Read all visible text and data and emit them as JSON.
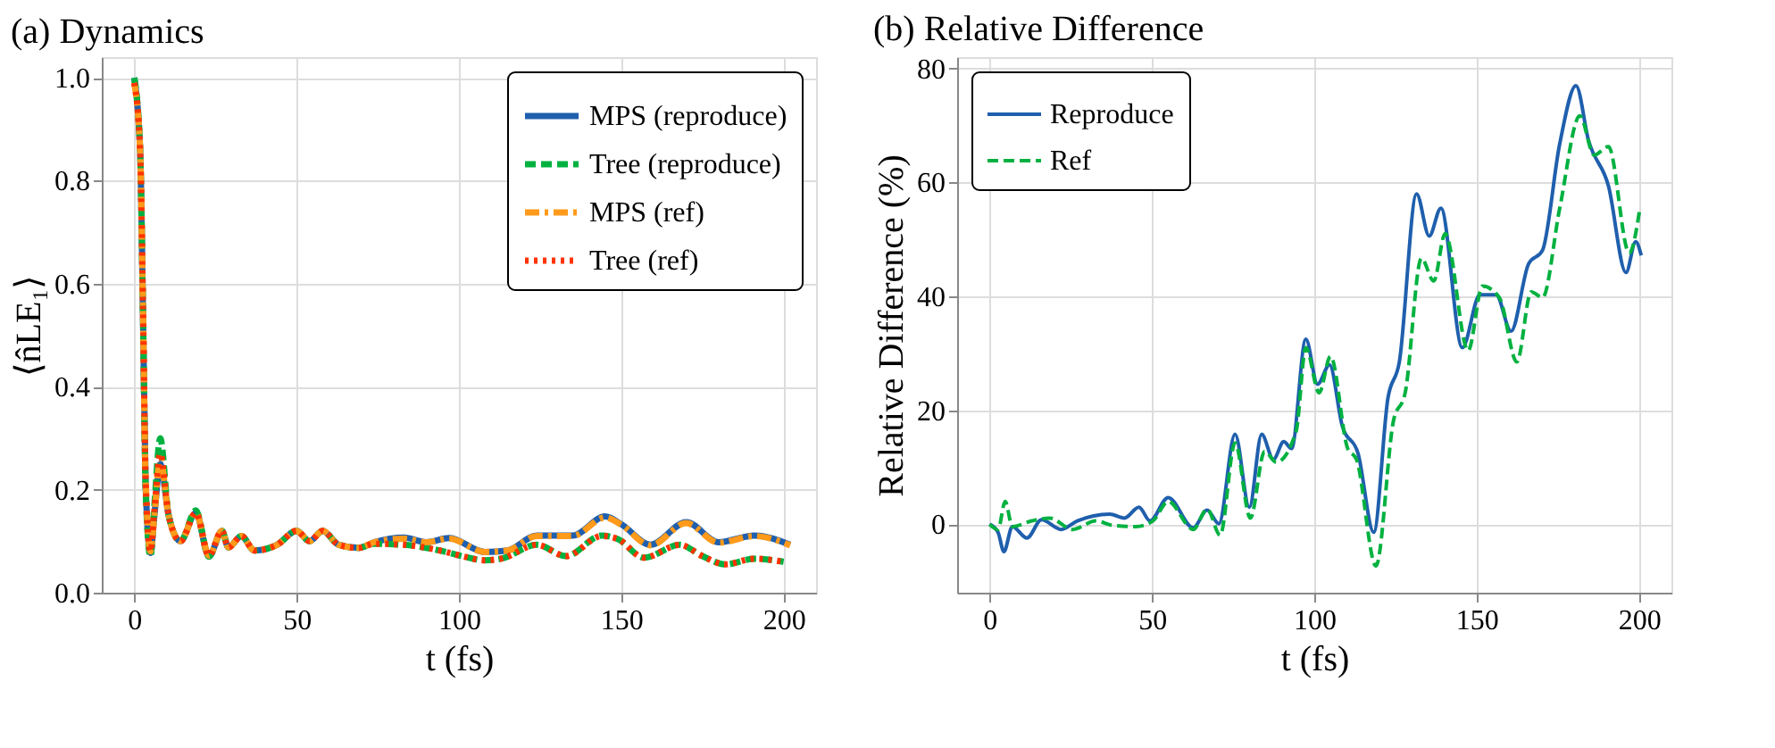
{
  "chart_data": [
    {
      "type": "line",
      "title": "(a) Dynamics",
      "xlabel": "t (fs)",
      "ylabel": "⟨n̂LE₁⟩",
      "xlim": [
        -10,
        210
      ],
      "ylim": [
        0,
        1.04
      ],
      "xticks": [
        0,
        50,
        100,
        150,
        200
      ],
      "yticks": [
        {
          "value": 0,
          "label": "0.0"
        },
        {
          "value": 0.2,
          "label": "0.2"
        },
        {
          "value": 0.4,
          "label": "0.4"
        },
        {
          "value": 0.6,
          "label": "0.6"
        },
        {
          "value": 0.8,
          "label": "0.8"
        },
        {
          "value": 1,
          "label": "1.0"
        }
      ],
      "grid": true,
      "legend": "top right",
      "marker": "none",
      "series": [
        {
          "name": "MPS (reproduce)",
          "color": "#1f5fad",
          "line_style": "solid",
          "x": [
            0,
            1.8,
            2.7,
            3.5,
            5,
            6.2,
            8,
            10.6,
            14.2,
            19,
            23,
            27,
            29,
            33,
            37,
            44,
            50,
            54,
            58,
            63,
            69,
            74,
            83,
            90,
            97,
            108,
            115,
            124,
            135,
            145,
            150,
            159,
            170,
            180,
            191,
            202
          ],
          "values": [
            1.0,
            0.86,
            0.54,
            0.21,
            0.077,
            0.15,
            0.25,
            0.15,
            0.1,
            0.155,
            0.07,
            0.12,
            0.088,
            0.11,
            0.082,
            0.093,
            0.12,
            0.1,
            0.12,
            0.093,
            0.087,
            0.098,
            0.107,
            0.098,
            0.106,
            0.079,
            0.082,
            0.111,
            0.111,
            0.148,
            0.133,
            0.093,
            0.137,
            0.098,
            0.111,
            0.093
          ]
        },
        {
          "name": "Tree (reproduce)",
          "color": "#00b140",
          "line_style": "dashed",
          "x": [
            0,
            1.8,
            2.7,
            3.5,
            5,
            6.2,
            8,
            10.6,
            14.2,
            19,
            23,
            27,
            29,
            33,
            37,
            44,
            50,
            54,
            58,
            63,
            69,
            74,
            83,
            94,
            101,
            108,
            113,
            124,
            133,
            144,
            149,
            157,
            168,
            175,
            182,
            191,
            200
          ],
          "values": [
            1.0,
            0.86,
            0.54,
            0.2,
            0.07,
            0.17,
            0.3,
            0.15,
            0.1,
            0.16,
            0.07,
            0.12,
            0.088,
            0.11,
            0.082,
            0.093,
            0.12,
            0.1,
            0.12,
            0.093,
            0.087,
            0.095,
            0.093,
            0.082,
            0.071,
            0.063,
            0.066,
            0.093,
            0.071,
            0.111,
            0.104,
            0.068,
            0.093,
            0.071,
            0.055,
            0.066,
            0.06
          ]
        },
        {
          "name": "MPS (ref)",
          "color": "#ff9a1a",
          "line_style": "dashdot",
          "x": [
            0,
            1.8,
            2.7,
            3.5,
            5,
            6.2,
            8,
            10.6,
            14.2,
            19,
            23,
            27,
            29,
            33,
            37,
            44,
            50,
            54,
            58,
            63,
            69,
            74,
            83,
            90,
            97,
            108,
            115,
            124,
            135,
            145,
            150,
            159,
            170,
            180,
            191,
            202
          ],
          "values": [
            0.99,
            0.86,
            0.55,
            0.22,
            0.08,
            0.15,
            0.26,
            0.15,
            0.1,
            0.155,
            0.072,
            0.12,
            0.088,
            0.11,
            0.082,
            0.093,
            0.12,
            0.1,
            0.12,
            0.093,
            0.087,
            0.098,
            0.105,
            0.098,
            0.105,
            0.079,
            0.082,
            0.11,
            0.11,
            0.146,
            0.132,
            0.092,
            0.135,
            0.097,
            0.11,
            0.092
          ]
        },
        {
          "name": "Tree (ref)",
          "color": "#ff3300",
          "line_style": "dotted",
          "x": [
            0,
            1.8,
            2.7,
            3.5,
            5,
            6.2,
            8,
            10.6,
            14.2,
            19,
            23,
            27,
            29,
            33,
            37,
            44,
            50,
            54,
            58,
            63,
            69,
            74,
            83,
            94,
            101,
            108,
            113,
            124,
            133,
            144,
            149,
            157,
            168,
            175,
            182,
            191,
            200
          ],
          "values": [
            0.99,
            0.86,
            0.55,
            0.22,
            0.08,
            0.16,
            0.27,
            0.15,
            0.1,
            0.155,
            0.072,
            0.12,
            0.088,
            0.11,
            0.082,
            0.093,
            0.12,
            0.1,
            0.12,
            0.093,
            0.087,
            0.095,
            0.093,
            0.082,
            0.071,
            0.063,
            0.066,
            0.093,
            0.071,
            0.11,
            0.104,
            0.068,
            0.093,
            0.071,
            0.055,
            0.066,
            0.06
          ]
        }
      ]
    },
    {
      "type": "line",
      "title": "(b) Relative Difference",
      "xlabel": "t (fs)",
      "ylabel": "Relative Difference (%)",
      "xlim": [
        -10,
        210
      ],
      "ylim": [
        -12,
        82
      ],
      "xticks": [
        0,
        50,
        100,
        150,
        200
      ],
      "yticks": [
        0,
        20,
        40,
        60,
        80
      ],
      "grid": true,
      "legend": "top left",
      "marker": "none",
      "series": [
        {
          "name": "Reproduce",
          "color": "#1f5fad",
          "line_style": "solid",
          "x": [
            0,
            2.6,
            4.4,
            7,
            11.5,
            16,
            22,
            27,
            37,
            41.5,
            46,
            49.4,
            55,
            62.7,
            67,
            70.6,
            75.6,
            80,
            83.8,
            87.4,
            90.6,
            93,
            97.4,
            101,
            104.7,
            108.6,
            113.5,
            118.3,
            122.7,
            126.2,
            131.5,
            135.4,
            139,
            145.6,
            151,
            156,
            160.6,
            166,
            170.3,
            175.6,
            180.6,
            184.5,
            190.6,
            196,
            199,
            200.7
          ],
          "values": [
            0,
            -1.4,
            -4.8,
            -0.4,
            -2.4,
            0.8,
            -0.9,
            0.6,
            1.8,
            1.1,
            3.0,
            0.6,
            4.7,
            -0.6,
            2.5,
            0.1,
            15.8,
            3.0,
            15.8,
            11.4,
            14.5,
            13.3,
            32.5,
            24.6,
            28,
            17.3,
            12.4,
            -1.4,
            22.2,
            28.5,
            58,
            50.6,
            55.5,
            31,
            40.3,
            40.3,
            33.9,
            45.7,
            48.1,
            66.8,
            77,
            67.3,
            59.4,
            44.2,
            49.6,
            47.2
          ]
        },
        {
          "name": "Ref",
          "color": "#00b140",
          "line_style": "dashed",
          "x": [
            0,
            2.6,
            4.8,
            7,
            13,
            18.5,
            25.6,
            32.7,
            38,
            45,
            50.3,
            55,
            62.7,
            67,
            71,
            75.6,
            80.3,
            84.7,
            88.3,
            94.4,
            97.4,
            101.5,
            105,
            110.3,
            113,
            119,
            124.4,
            128,
            133,
            136.8,
            140.3,
            147.4,
            151.8,
            157,
            162.4,
            166.8,
            170.3,
            175.6,
            181.8,
            186.2,
            190.6,
            197,
            200.3
          ],
          "values": [
            0,
            -0.9,
            4,
            -0.4,
            0.6,
            1.1,
            -0.9,
            0.6,
            -0.2,
            -0.4,
            0.6,
            4,
            -0.9,
            2.7,
            -1.9,
            14.3,
            1.1,
            12.8,
            10.9,
            16.3,
            31,
            23.1,
            29.5,
            13.3,
            11.4,
            -7.3,
            18.2,
            23.1,
            46.7,
            42.7,
            51,
            30.5,
            41.8,
            39.8,
            28.5,
            40.8,
            39.8,
            55.5,
            71.7,
            64.8,
            66.3,
            47.6,
            55.5
          ]
        }
      ]
    }
  ]
}
